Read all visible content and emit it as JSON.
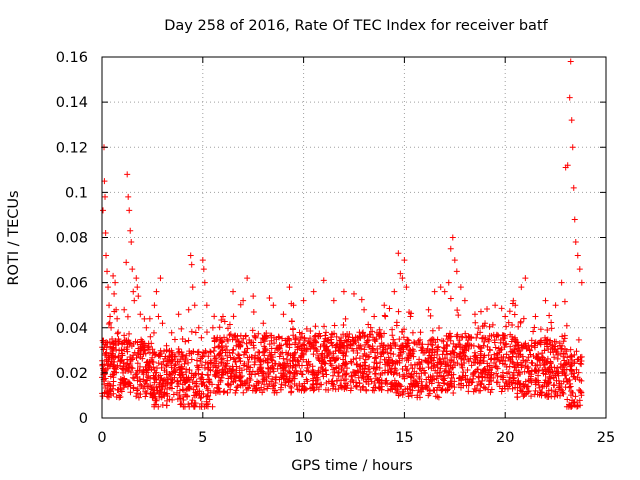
{
  "chart_data": {
    "type": "scatter",
    "title": "Day 258 of 2016, Rate Of TEC Index for receiver batf",
    "xlabel": "GPS time / hours",
    "ylabel": "ROTI / TECUs",
    "xlim": [
      0,
      25
    ],
    "ylim": [
      0,
      0.16
    ],
    "xticks": [
      0,
      5,
      10,
      15,
      20,
      25
    ],
    "xtick_labels": [
      "0",
      "5",
      "10",
      "15",
      "20",
      "25"
    ],
    "yticks": [
      0,
      0.02,
      0.04,
      0.06,
      0.08,
      0.1,
      0.12,
      0.14,
      0.16
    ],
    "ytick_labels": [
      "0",
      "0.02",
      "0.04",
      "0.06",
      "0.08",
      "0.1",
      "0.12",
      "0.14",
      "0.16"
    ],
    "grid": true,
    "marker": "+",
    "color": "#ff0000",
    "series": [
      {
        "name": "ROTI",
        "points": [
          [
            0.0,
            0.018
          ],
          [
            0.05,
            0.092
          ],
          [
            0.1,
            0.12
          ],
          [
            0.12,
            0.105
          ],
          [
            0.15,
            0.098
          ],
          [
            0.18,
            0.082
          ],
          [
            0.2,
            0.072
          ],
          [
            0.25,
            0.065
          ],
          [
            0.3,
            0.058
          ],
          [
            0.35,
            0.05
          ],
          [
            0.4,
            0.045
          ],
          [
            0.45,
            0.04
          ],
          [
            0.5,
            0.035
          ],
          [
            0.55,
            0.063
          ],
          [
            0.6,
            0.055
          ],
          [
            0.65,
            0.06
          ],
          [
            0.7,
            0.048
          ],
          [
            0.75,
            0.044
          ],
          [
            0.8,
            0.038
          ],
          [
            0.85,
            0.03
          ],
          [
            0.9,
            0.025
          ],
          [
            1.0,
            0.033
          ],
          [
            1.1,
            0.048
          ],
          [
            1.2,
            0.069
          ],
          [
            1.25,
            0.108
          ],
          [
            1.3,
            0.098
          ],
          [
            1.35,
            0.092
          ],
          [
            1.4,
            0.083
          ],
          [
            1.45,
            0.078
          ],
          [
            1.5,
            0.066
          ],
          [
            1.55,
            0.056
          ],
          [
            1.6,
            0.052
          ],
          [
            1.7,
            0.062
          ],
          [
            1.75,
            0.058
          ],
          [
            1.8,
            0.054
          ],
          [
            1.9,
            0.046
          ],
          [
            2.0,
            0.034
          ],
          [
            2.2,
            0.04
          ],
          [
            2.4,
            0.036
          ],
          [
            2.6,
            0.05
          ],
          [
            2.7,
            0.056
          ],
          [
            2.8,
            0.045
          ],
          [
            2.9,
            0.062
          ],
          [
            3.0,
            0.042
          ],
          [
            3.2,
            0.032
          ],
          [
            3.5,
            0.026
          ],
          [
            3.8,
            0.046
          ],
          [
            4.0,
            0.035
          ],
          [
            4.3,
            0.048
          ],
          [
            4.4,
            0.072
          ],
          [
            4.45,
            0.068
          ],
          [
            4.5,
            0.058
          ],
          [
            4.6,
            0.05
          ],
          [
            4.8,
            0.04
          ],
          [
            5.0,
            0.07
          ],
          [
            5.05,
            0.066
          ],
          [
            5.1,
            0.06
          ],
          [
            5.2,
            0.05
          ],
          [
            5.5,
            0.04
          ],
          [
            6.0,
            0.045
          ],
          [
            6.5,
            0.056
          ],
          [
            7.0,
            0.052
          ],
          [
            7.2,
            0.062
          ],
          [
            7.5,
            0.054
          ],
          [
            8.0,
            0.042
          ],
          [
            8.5,
            0.05
          ],
          [
            9.0,
            0.046
          ],
          [
            9.3,
            0.058
          ],
          [
            9.5,
            0.05
          ],
          [
            10.0,
            0.052
          ],
          [
            10.5,
            0.056
          ],
          [
            11.0,
            0.061
          ],
          [
            11.5,
            0.052
          ],
          [
            12.0,
            0.056
          ],
          [
            12.5,
            0.055
          ],
          [
            13.0,
            0.048
          ],
          [
            13.5,
            0.045
          ],
          [
            14.0,
            0.05
          ],
          [
            14.5,
            0.056
          ],
          [
            14.7,
            0.073
          ],
          [
            14.8,
            0.064
          ],
          [
            14.9,
            0.062
          ],
          [
            15.0,
            0.07
          ],
          [
            15.1,
            0.058
          ],
          [
            15.3,
            0.045
          ],
          [
            15.8,
            0.038
          ],
          [
            16.2,
            0.048
          ],
          [
            16.5,
            0.056
          ],
          [
            16.8,
            0.058
          ],
          [
            17.0,
            0.056
          ],
          [
            17.2,
            0.06
          ],
          [
            17.3,
            0.075
          ],
          [
            17.4,
            0.08
          ],
          [
            17.5,
            0.07
          ],
          [
            17.6,
            0.065
          ],
          [
            17.8,
            0.058
          ],
          [
            18.0,
            0.052
          ],
          [
            18.5,
            0.046
          ],
          [
            19.0,
            0.042
          ],
          [
            19.5,
            0.05
          ],
          [
            20.0,
            0.045
          ],
          [
            20.5,
            0.05
          ],
          [
            20.8,
            0.058
          ],
          [
            21.0,
            0.062
          ],
          [
            21.5,
            0.045
          ],
          [
            22.0,
            0.052
          ],
          [
            22.5,
            0.05
          ],
          [
            22.8,
            0.06
          ],
          [
            23.0,
            0.111
          ],
          [
            23.1,
            0.112
          ],
          [
            23.2,
            0.142
          ],
          [
            23.25,
            0.158
          ],
          [
            23.3,
            0.132
          ],
          [
            23.35,
            0.12
          ],
          [
            23.4,
            0.102
          ],
          [
            23.45,
            0.088
          ],
          [
            23.5,
            0.078
          ],
          [
            23.6,
            0.072
          ],
          [
            23.7,
            0.066
          ],
          [
            23.8,
            0.06
          ]
        ]
      }
    ]
  }
}
